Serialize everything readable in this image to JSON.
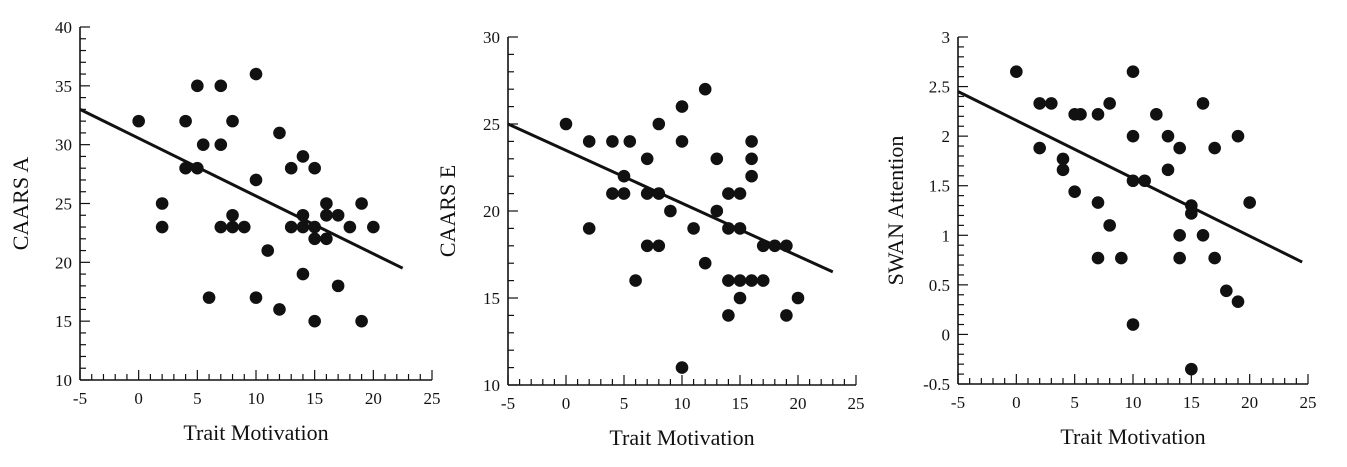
{
  "chart_data": [
    {
      "type": "scatter",
      "title": "",
      "xlabel": "Trait Motivation",
      "ylabel": "CAARS A",
      "xlim": [
        -5,
        25
      ],
      "ylim": [
        10,
        40
      ],
      "xticks": [
        -5,
        0,
        5,
        10,
        15,
        20,
        25
      ],
      "yticks": [
        10,
        15,
        20,
        25,
        30,
        35,
        40
      ],
      "grid": false,
      "series": [
        {
          "points": [
            [
              0,
              32
            ],
            [
              2,
              25
            ],
            [
              2,
              23
            ],
            [
              4,
              32
            ],
            [
              4,
              28
            ],
            [
              5,
              35
            ],
            [
              5,
              28
            ],
            [
              5.5,
              30
            ],
            [
              6,
              17
            ],
            [
              7,
              35
            ],
            [
              7,
              30
            ],
            [
              7,
              23
            ],
            [
              8,
              32
            ],
            [
              8,
              24
            ],
            [
              8,
              23
            ],
            [
              9,
              23
            ],
            [
              10,
              36
            ],
            [
              10,
              27
            ],
            [
              10,
              17
            ],
            [
              11,
              21
            ],
            [
              12,
              31
            ],
            [
              12,
              16
            ],
            [
              13,
              28
            ],
            [
              13,
              23
            ],
            [
              14,
              29
            ],
            [
              14,
              24
            ],
            [
              14,
              23
            ],
            [
              14,
              19
            ],
            [
              15,
              28
            ],
            [
              15,
              23
            ],
            [
              15,
              22
            ],
            [
              15,
              15
            ],
            [
              16,
              25
            ],
            [
              16,
              24
            ],
            [
              16,
              22
            ],
            [
              17,
              24
            ],
            [
              17,
              18
            ],
            [
              18,
              23
            ],
            [
              19,
              25
            ],
            [
              19,
              15
            ],
            [
              20,
              23
            ]
          ]
        }
      ],
      "fit_line": [
        [
          -5,
          33
        ],
        [
          22.5,
          19.5
        ]
      ]
    },
    {
      "type": "scatter",
      "title": "",
      "xlabel": "Trait Motivation",
      "ylabel": "CAARS E",
      "xlim": [
        -5,
        25
      ],
      "ylim": [
        10,
        30
      ],
      "xticks": [
        -5,
        0,
        5,
        10,
        15,
        20,
        25
      ],
      "yticks": [
        10,
        15,
        20,
        25,
        30
      ],
      "grid": false,
      "series": [
        {
          "points": [
            [
              0,
              25
            ],
            [
              2,
              24
            ],
            [
              2,
              19
            ],
            [
              4,
              24
            ],
            [
              4,
              21
            ],
            [
              5,
              22
            ],
            [
              5,
              21
            ],
            [
              5.5,
              24
            ],
            [
              6,
              16
            ],
            [
              7,
              23
            ],
            [
              7,
              21
            ],
            [
              7,
              18
            ],
            [
              8,
              25
            ],
            [
              8,
              21
            ],
            [
              8,
              18
            ],
            [
              9,
              20
            ],
            [
              10,
              26
            ],
            [
              10,
              24
            ],
            [
              10,
              11
            ],
            [
              11,
              19
            ],
            [
              12,
              27
            ],
            [
              12,
              17
            ],
            [
              13,
              23
            ],
            [
              13,
              20
            ],
            [
              14,
              21
            ],
            [
              14,
              19
            ],
            [
              14,
              16
            ],
            [
              14,
              14
            ],
            [
              15,
              21
            ],
            [
              15,
              19
            ],
            [
              15,
              16
            ],
            [
              15,
              15
            ],
            [
              16,
              24
            ],
            [
              16,
              23
            ],
            [
              16,
              22
            ],
            [
              16,
              16
            ],
            [
              17,
              18
            ],
            [
              17,
              16
            ],
            [
              18,
              18
            ],
            [
              19,
              18
            ],
            [
              19,
              14
            ],
            [
              20,
              15
            ]
          ]
        }
      ],
      "fit_line": [
        [
          -5,
          25
        ],
        [
          23,
          16.5
        ]
      ]
    },
    {
      "type": "scatter",
      "title": "",
      "xlabel": "Trait Motivation",
      "ylabel": "SWAN Attention",
      "xlim": [
        -5,
        25
      ],
      "ylim": [
        -0.5,
        3
      ],
      "xticks": [
        -5,
        0,
        5,
        10,
        15,
        20,
        25
      ],
      "yticks": [
        -0.5,
        0,
        0.5,
        1,
        1.5,
        2,
        2.5,
        3
      ],
      "grid": false,
      "series": [
        {
          "points": [
            [
              0,
              2.65
            ],
            [
              2,
              2.33
            ],
            [
              2,
              1.88
            ],
            [
              3,
              2.33
            ],
            [
              4,
              1.77
            ],
            [
              4,
              1.66
            ],
            [
              5,
              2.22
            ],
            [
              5,
              1.44
            ],
            [
              5.5,
              2.22
            ],
            [
              7,
              2.22
            ],
            [
              7,
              1.33
            ],
            [
              7,
              0.77
            ],
            [
              8,
              2.33
            ],
            [
              8,
              1.1
            ],
            [
              9,
              0.77
            ],
            [
              10,
              2.65
            ],
            [
              10,
              2.0
            ],
            [
              10,
              1.55
            ],
            [
              10,
              0.1
            ],
            [
              11,
              1.55
            ],
            [
              12,
              2.22
            ],
            [
              13,
              2.0
            ],
            [
              13,
              1.66
            ],
            [
              14,
              1.88
            ],
            [
              14,
              1.0
            ],
            [
              14,
              0.77
            ],
            [
              15,
              1.3
            ],
            [
              15,
              1.22
            ],
            [
              15,
              -0.35
            ],
            [
              16,
              2.33
            ],
            [
              16,
              1.0
            ],
            [
              17,
              1.88
            ],
            [
              17,
              0.77
            ],
            [
              18,
              0.44
            ],
            [
              19,
              2.0
            ],
            [
              19,
              0.33
            ],
            [
              20,
              1.33
            ]
          ]
        }
      ],
      "fit_line": [
        [
          -5,
          2.45
        ],
        [
          24.5,
          0.73
        ]
      ]
    }
  ]
}
